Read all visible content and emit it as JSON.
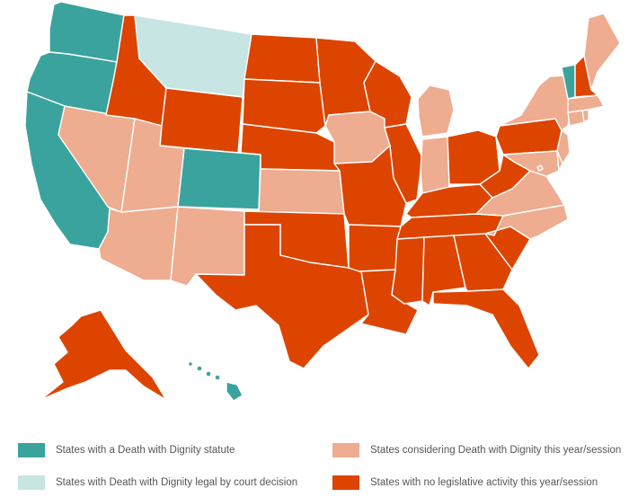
{
  "colors": {
    "statute": "#3aa39d",
    "court": "#c6e5e3",
    "considering": "#eeac90",
    "none": "#dd4400"
  },
  "legend": {
    "statute": "States with a Death with Dignity statute",
    "court": "States with Death with Dignity legal by court decision",
    "considering": "States considering Death with Dignity this year/session",
    "none": "States with no legislative activity this year/session"
  },
  "states": {
    "WA": "statute",
    "OR": "statute",
    "CA": "statute",
    "CO": "statute",
    "VT": "statute",
    "HI": "statute",
    "MT": "court",
    "NV": "considering",
    "UT": "considering",
    "AZ": "considering",
    "NM": "considering",
    "KS": "considering",
    "IA": "considering",
    "IN": "considering",
    "MI": "considering",
    "NY": "considering",
    "ME": "considering",
    "MA": "considering",
    "CT": "considering",
    "RI": "considering",
    "NJ": "considering",
    "DE": "considering",
    "MD": "considering",
    "VA": "considering",
    "NC": "considering",
    "DC": "considering",
    "ID": "none",
    "WY": "none",
    "ND": "none",
    "SD": "none",
    "NE": "none",
    "OK": "none",
    "TX": "none",
    "MN": "none",
    "MO": "none",
    "AR": "none",
    "LA": "none",
    "WI": "none",
    "IL": "none",
    "KY": "none",
    "TN": "none",
    "MS": "none",
    "AL": "none",
    "GA": "none",
    "FL": "none",
    "SC": "none",
    "OH": "none",
    "WV": "none",
    "PA": "none",
    "NH": "none",
    "AK": "none"
  }
}
